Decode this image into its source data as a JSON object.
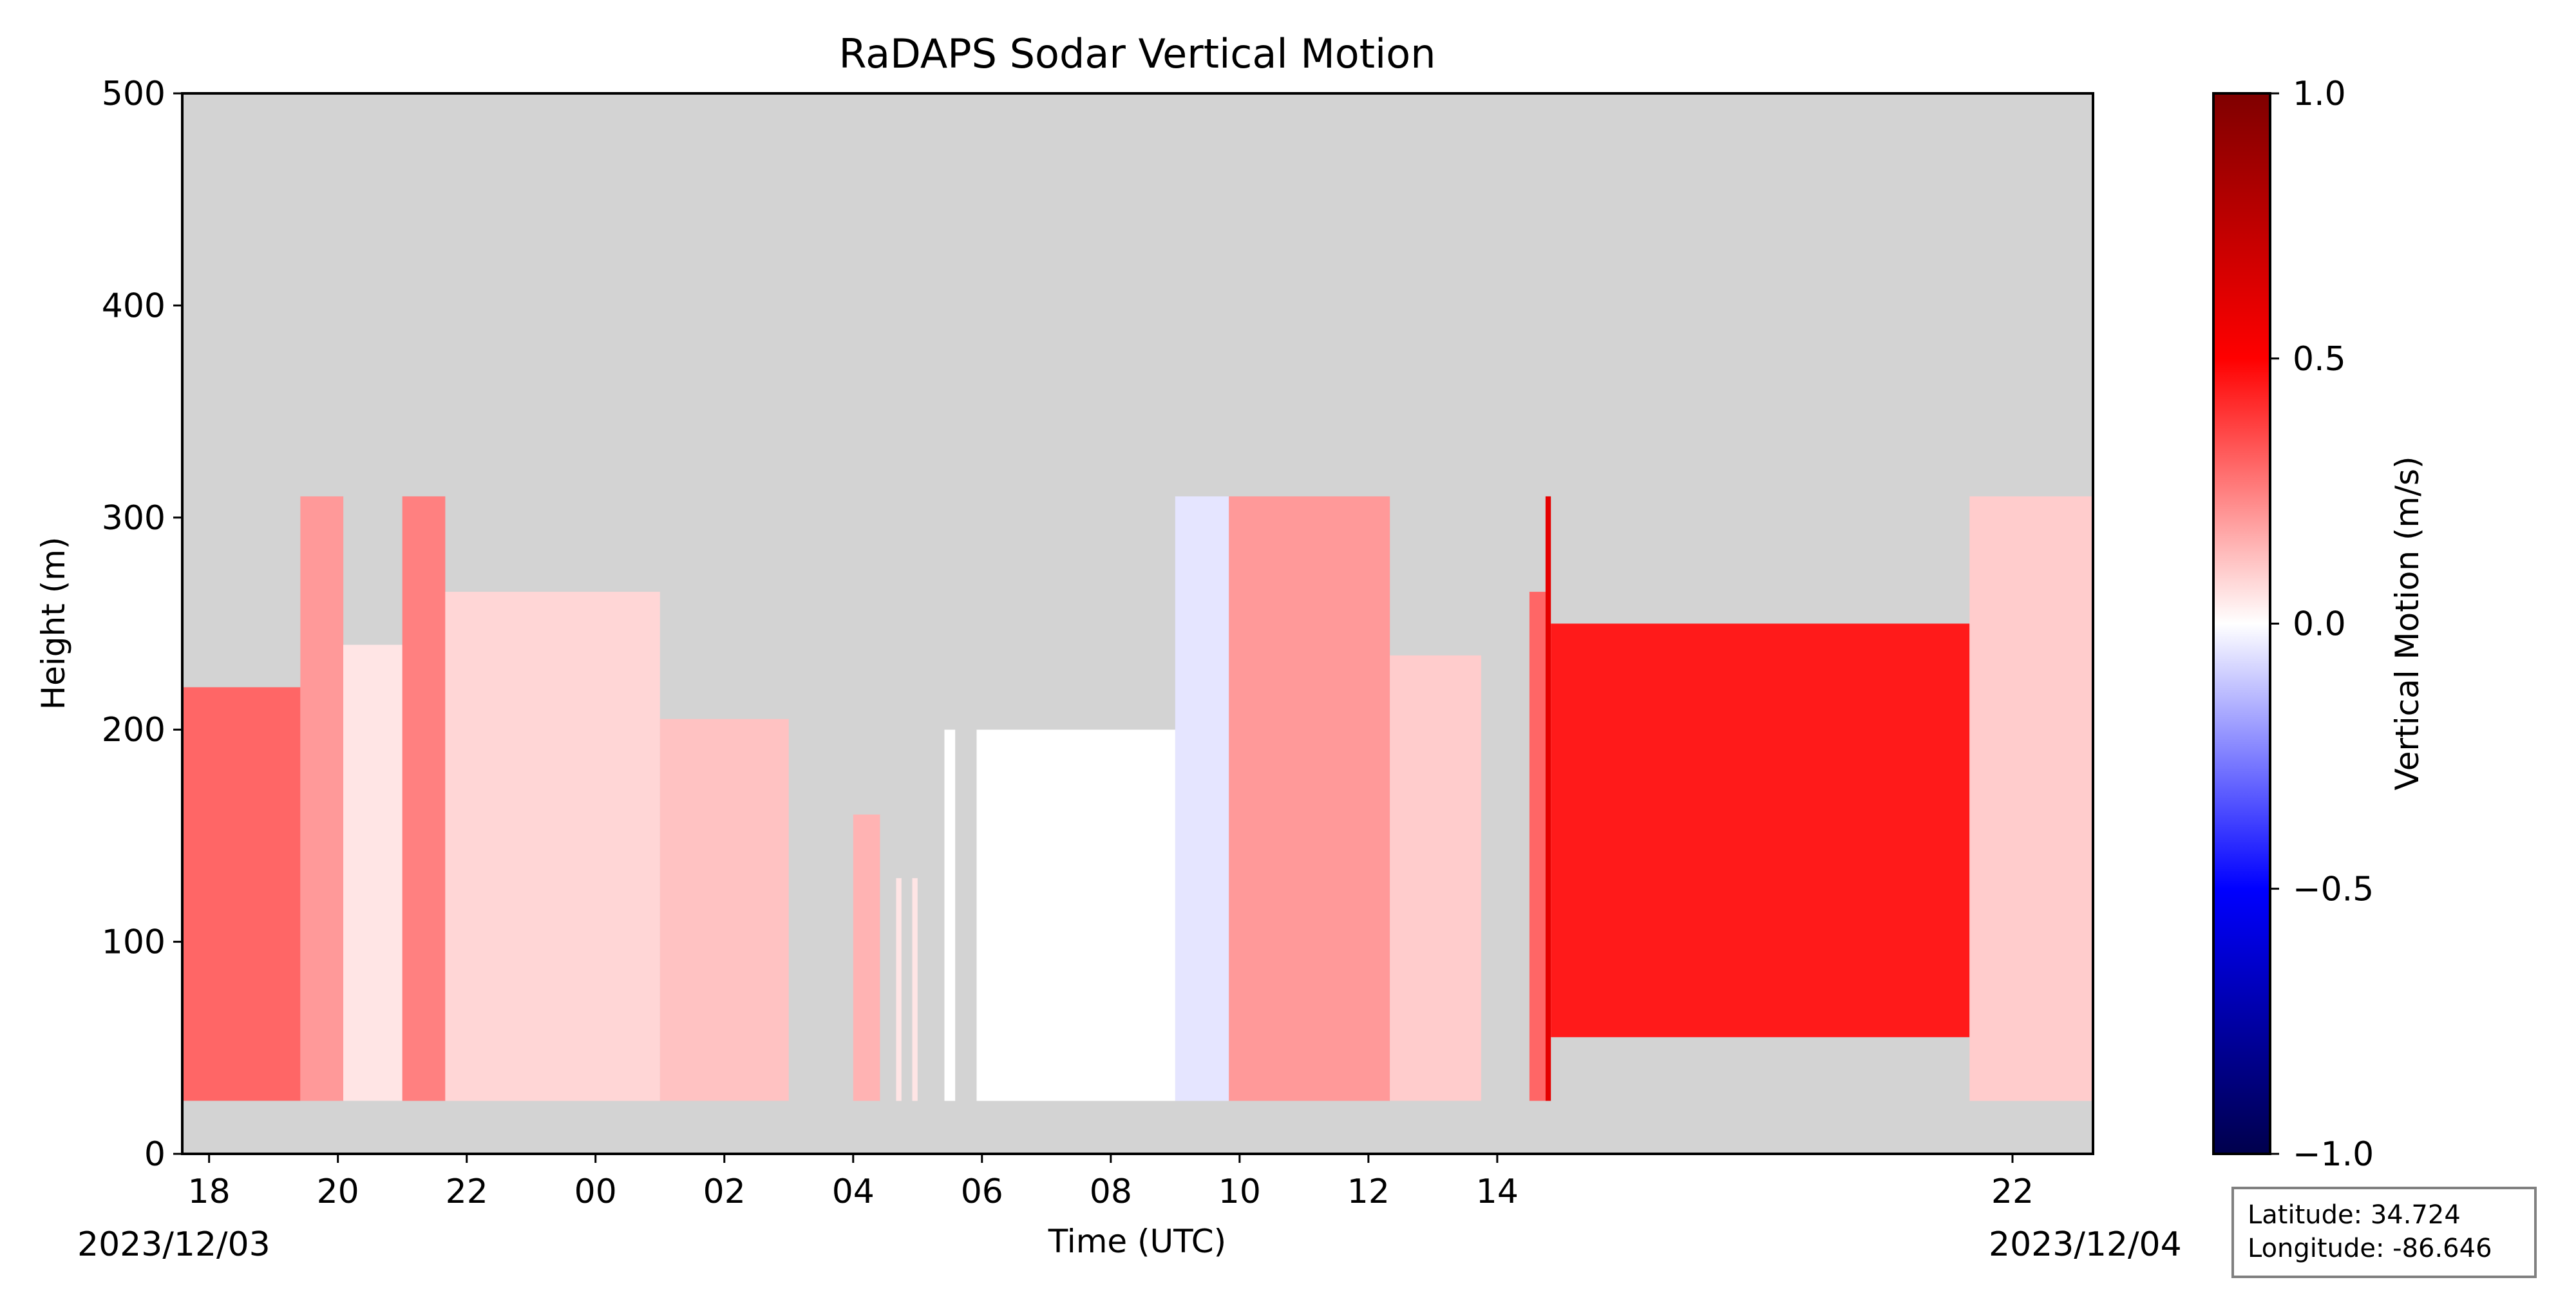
{
  "chart_data": {
    "type": "heatmap",
    "title": "RaDAPS Sodar Vertical Motion",
    "xlabel": "Time (UTC)",
    "ylabel": "Height (m)",
    "ylim": [
      0,
      500
    ],
    "xlim": [
      "2023-12-03T17:35",
      "2023-12-04T23:15"
    ],
    "yticks": [
      "0",
      "100",
      "200",
      "300",
      "400",
      "500"
    ],
    "xticks": [
      {
        "t": "2023-12-03T18:00",
        "label": "18"
      },
      {
        "t": "2023-12-03T20:00",
        "label": "20"
      },
      {
        "t": "2023-12-03T22:00",
        "label": "22"
      },
      {
        "t": "2023-12-04T00:00",
        "label": "00"
      },
      {
        "t": "2023-12-04T02:00",
        "label": "02"
      },
      {
        "t": "2023-12-04T04:00",
        "label": "04"
      },
      {
        "t": "2023-12-04T06:00",
        "label": "06"
      },
      {
        "t": "2023-12-04T08:00",
        "label": "08"
      },
      {
        "t": "2023-12-04T10:00",
        "label": "10"
      },
      {
        "t": "2023-12-04T12:00",
        "label": "12"
      },
      {
        "t": "2023-12-04T14:00",
        "label": "14"
      },
      {
        "t": "2023-12-04T22:00",
        "label": "22"
      }
    ],
    "date_labels": [
      "2023/12/03",
      "2023/12/04"
    ],
    "colorbar": {
      "label": "Vertical Motion (m/s)",
      "range": [
        -1.0,
        1.0
      ],
      "ticks": [
        "1.0",
        "0.5",
        "0.0",
        "−0.5",
        "−1.0"
      ],
      "colormap": "seismic",
      "colors": [
        "#00004c",
        "#0000ff",
        "#ffffff",
        "#ff0000",
        "#7f0000"
      ]
    },
    "missing_color": "#d3d3d3",
    "data_segments": [
      {
        "start": "2023-12-03T17:35",
        "end": "2023-12-03T19:25",
        "min_height": 25,
        "max_height": 220,
        "mean_motion": 0.3
      },
      {
        "start": "2023-12-03T19:25",
        "end": "2023-12-03T20:05",
        "min_height": 25,
        "max_height": 310,
        "mean_motion": 0.2
      },
      {
        "start": "2023-12-03T20:05",
        "end": "2023-12-03T21:00",
        "min_height": 25,
        "max_height": 240,
        "mean_motion": 0.05
      },
      {
        "start": "2023-12-03T21:00",
        "end": "2023-12-03T21:40",
        "min_height": 25,
        "max_height": 310,
        "mean_motion": 0.25
      },
      {
        "start": "2023-12-03T21:40",
        "end": "2023-12-04T01:00",
        "min_height": 25,
        "max_height": 265,
        "mean_motion": 0.08
      },
      {
        "start": "2023-12-04T01:00",
        "end": "2023-12-04T03:00",
        "min_height": 25,
        "max_height": 205,
        "mean_motion": 0.12
      },
      {
        "start": "2023-12-04T04:00",
        "end": "2023-12-04T04:25",
        "min_height": 25,
        "max_height": 160,
        "mean_motion": 0.15
      },
      {
        "start": "2023-12-04T04:40",
        "end": "2023-12-04T04:45",
        "min_height": 25,
        "max_height": 130,
        "mean_motion": 0.05
      },
      {
        "start": "2023-12-04T04:55",
        "end": "2023-12-04T05:00",
        "min_height": 25,
        "max_height": 130,
        "mean_motion": 0.05
      },
      {
        "start": "2023-12-04T05:25",
        "end": "2023-12-04T05:35",
        "min_height": 25,
        "max_height": 200,
        "mean_motion": 0.0
      },
      {
        "start": "2023-12-04T05:55",
        "end": "2023-12-04T09:00",
        "min_height": 25,
        "max_height": 200,
        "mean_motion": 0.0
      },
      {
        "start": "2023-12-04T09:00",
        "end": "2023-12-04T09:50",
        "min_height": 25,
        "max_height": 310,
        "mean_motion": -0.05
      },
      {
        "start": "2023-12-04T09:50",
        "end": "2023-12-04T12:20",
        "min_height": 25,
        "max_height": 310,
        "mean_motion": 0.2
      },
      {
        "start": "2023-12-04T12:20",
        "end": "2023-12-04T13:45",
        "min_height": 25,
        "max_height": 235,
        "mean_motion": 0.1
      },
      {
        "start": "2023-12-04T14:30",
        "end": "2023-12-04T14:45",
        "min_height": 25,
        "max_height": 265,
        "mean_motion": 0.3
      },
      {
        "start": "2023-12-04T14:45",
        "end": "2023-12-04T14:50",
        "min_height": 25,
        "max_height": 310,
        "mean_motion": 0.6
      },
      {
        "start": "2023-12-04T14:50",
        "end": "2023-12-04T21:20",
        "min_height": 55,
        "max_height": 250,
        "mean_motion": 0.45
      },
      {
        "start": "2023-12-04T21:20",
        "end": "2023-12-04T23:15",
        "min_height": 25,
        "max_height": 310,
        "mean_motion": 0.1
      }
    ]
  },
  "info_box": {
    "latitude": "Latitude: 34.724",
    "longitude": "Longitude: -86.646"
  }
}
